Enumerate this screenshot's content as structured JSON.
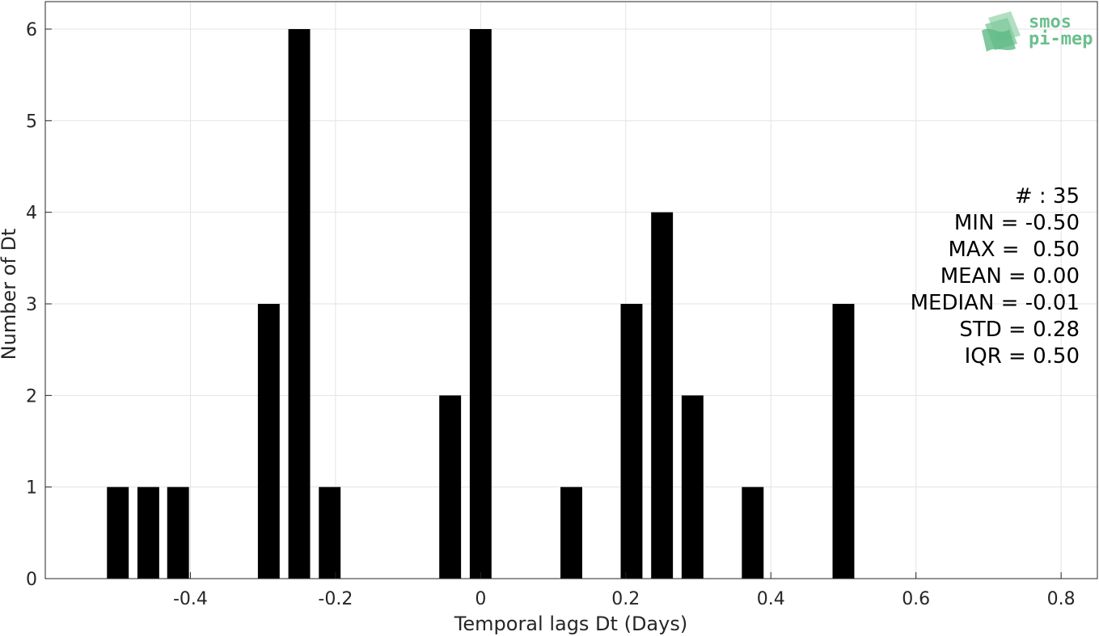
{
  "chart_data": {
    "type": "bar",
    "xlabel": "Temporal lags Dt (Days)",
    "ylabel": "Number of Dt",
    "xlim": [
      -0.6,
      0.85
    ],
    "ylim": [
      0,
      6.3
    ],
    "x_ticks": [
      -0.4,
      -0.2,
      0,
      0.2,
      0.4,
      0.6,
      0.8
    ],
    "x_tick_labels": [
      "-0.4",
      "-0.2",
      "0",
      "0.2",
      "0.4",
      "0.6",
      "0.8"
    ],
    "y_ticks": [
      0,
      1,
      2,
      3,
      4,
      5,
      6
    ],
    "y_tick_labels": [
      "0",
      "1",
      "2",
      "3",
      "4",
      "5",
      "6"
    ],
    "grid": true,
    "bar_color": "#000000",
    "bar_width": 0.03,
    "x": [
      -0.5,
      -0.458,
      -0.417,
      -0.292,
      -0.25,
      -0.208,
      -0.042,
      0.0,
      0.125,
      0.208,
      0.25,
      0.292,
      0.375,
      0.5
    ],
    "values": [
      1,
      1,
      1,
      3,
      6,
      1,
      2,
      6,
      1,
      3,
      4,
      2,
      1,
      3
    ]
  },
  "stats": {
    "lines": [
      "# : 35",
      "MIN = -0.50",
      "MAX =  0.50",
      "MEAN = 0.00",
      "MEDIAN = -0.01",
      "STD = 0.28",
      "IQR = 0.50"
    ]
  },
  "logo": {
    "line1": "smos",
    "line2": "pi-mep",
    "color": "#6bbf8e"
  }
}
